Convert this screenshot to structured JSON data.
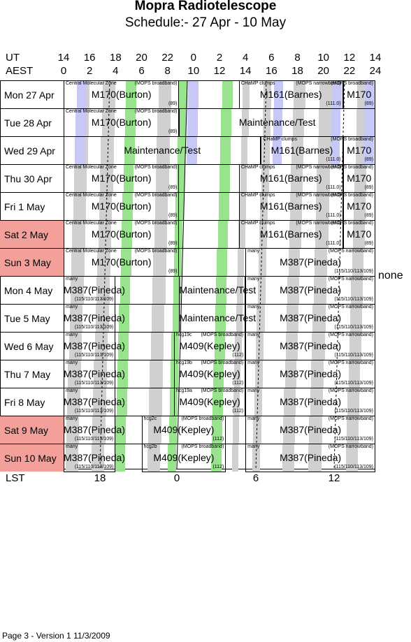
{
  "title": "Mopra Radiotelescope",
  "subtitle": "Schedule:- 27 Apr - 10 May",
  "axis": {
    "ut_label": "UT",
    "aest_label": "AEST",
    "ut_ticks": [
      "14",
      "16",
      "18",
      "20",
      "22",
      "0",
      "2",
      "4",
      "6",
      "8",
      "10",
      "12",
      "14"
    ],
    "aest_ticks": [
      "0",
      "2",
      "4",
      "6",
      "8",
      "10",
      "12",
      "14",
      "16",
      "18",
      "20",
      "22",
      "24"
    ],
    "lst_label": "LST",
    "lst_ticks": [
      "18",
      "0",
      "6",
      "12"
    ]
  },
  "colors": {
    "weekend": "#f4a09a",
    "grey": "#d0d0d0",
    "green": "#99e38e",
    "lavender": "#c8c8f8"
  },
  "days": [
    {
      "label": "Mon  27 Apr",
      "weekend": false
    },
    {
      "label": "Tue  28 Apr",
      "weekend": false
    },
    {
      "label": "Wed  29 Apr",
      "weekend": false
    },
    {
      "label": "Thu  30 Apr",
      "weekend": false
    },
    {
      "label": "Fri   1 May",
      "weekend": false
    },
    {
      "label": "Sat   2 May",
      "weekend": true
    },
    {
      "label": "Sun   3 May",
      "weekend": true
    },
    {
      "label": "Mon   4 May",
      "weekend": false
    },
    {
      "label": "Tue   5 May",
      "weekend": false
    },
    {
      "label": "Wed   6 May",
      "weekend": false
    },
    {
      "label": "Thu   7 May",
      "weekend": false
    },
    {
      "label": "Fri   8 May",
      "weekend": false
    },
    {
      "label": "Sat   9 May",
      "weekend": true
    },
    {
      "label": "Sun  10 May",
      "weekend": true
    }
  ],
  "schedule": [
    {
      "day": 0,
      "start": 0,
      "end": 8.9,
      "label": "M170(Burton)",
      "source": "Central Molecular Zone",
      "mode": "(MOPS broadband)",
      "code": "(89)"
    },
    {
      "day": 0,
      "start": 13.5,
      "end": 21.5,
      "label": "M161(Barnes)",
      "source": "CHaMP clumps",
      "mode": "(MOPS narrowband)",
      "code": "(111.0)"
    },
    {
      "day": 0,
      "start": 21.5,
      "end": 24,
      "label": "M170",
      "source": "",
      "mode": "(MOPS broadband)",
      "code": "(89)"
    },
    {
      "day": 1,
      "start": 0,
      "end": 8.9,
      "label": "M170(Burton)",
      "source": "Central Molecular Zone",
      "mode": "(MOPS broadband)",
      "code": "(89)"
    },
    {
      "day": 1,
      "start": 8.9,
      "end": 24,
      "label": "Maintenance/Test",
      "source": "",
      "mode": "",
      "code": ""
    },
    {
      "day": 2,
      "start": 0,
      "end": 15.2,
      "label": "Maintenance/Test",
      "source": "",
      "mode": "",
      "code": ""
    },
    {
      "day": 2,
      "start": 15.2,
      "end": 21.5,
      "label": "M161(Barnes)",
      "source": "CHaMP clumps",
      "mode": "",
      "code": "(111.0)"
    },
    {
      "day": 2,
      "start": 21.5,
      "end": 24,
      "label": "M170",
      "source": "",
      "mode": "(MOPS broadband)",
      "code": "(89)"
    },
    {
      "day": 3,
      "start": 0,
      "end": 8.9,
      "label": "M170(Burton)",
      "source": "Central Molecular Zone",
      "mode": "(MOPS broadband)",
      "code": "(89)"
    },
    {
      "day": 3,
      "start": 13.5,
      "end": 21.5,
      "label": "M161(Barnes)",
      "source": "CHaMP clumps",
      "mode": "(MOPS narrowband)",
      "code": "(111.0)"
    },
    {
      "day": 3,
      "start": 21.5,
      "end": 24,
      "label": "M170",
      "source": "",
      "mode": "(MOPS broadband)",
      "code": "(89)"
    },
    {
      "day": 4,
      "start": 0,
      "end": 8.9,
      "label": "M170(Burton)",
      "source": "Central Molecular Zone",
      "mode": "(MOPS broadband)",
      "code": "(89)"
    },
    {
      "day": 4,
      "start": 13.5,
      "end": 21.5,
      "label": "M161(Barnes)",
      "source": "CHaMP clumps",
      "mode": "(MOPS narrowband)",
      "code": "(111.0)"
    },
    {
      "day": 4,
      "start": 21.5,
      "end": 24,
      "label": "M170",
      "source": "",
      "mode": "(MOPS broadband)",
      "code": "(89)"
    },
    {
      "day": 5,
      "start": 0,
      "end": 8.9,
      "label": "M170(Burton)",
      "source": "Central Molecular Zone",
      "mode": "(MOPS broadband)",
      "code": "(89)"
    },
    {
      "day": 5,
      "start": 13.5,
      "end": 21.5,
      "label": "M161(Barnes)",
      "source": "CHaMP clumps",
      "mode": "(MOPS narrowband)",
      "code": "(111.0)"
    },
    {
      "day": 5,
      "start": 21.5,
      "end": 24,
      "label": "M170",
      "source": "",
      "mode": "(MOPS broadband)",
      "code": "(89)"
    },
    {
      "day": 6,
      "start": 0,
      "end": 8.9,
      "label": "M170(Burton)",
      "source": "Central Molecular Zone",
      "mode": "(MOPS broadband)",
      "code": "(89)"
    },
    {
      "day": 6,
      "start": 14,
      "end": 24,
      "label": "M387(Pineda)",
      "source": "many",
      "mode": "(MOPS narrowband)",
      "code": "(115/110/113/109)"
    },
    {
      "day": 7,
      "start": 0,
      "end": 4,
      "label": "M387(Pineda)",
      "source": "many",
      "mode": "",
      "code": "(115/110/113/109)"
    },
    {
      "day": 7,
      "start": 8.9,
      "end": 14,
      "label": "Maintenance/Test",
      "source": "",
      "mode": "",
      "code": ""
    },
    {
      "day": 7,
      "start": 14,
      "end": 24,
      "label": "M387(Pineda)",
      "source": "many",
      "mode": "(MOPS narrowband)",
      "code": "(115/110/113/109)"
    },
    {
      "day": 8,
      "start": 0,
      "end": 4,
      "label": "M387(Pineda)",
      "source": "many",
      "mode": "",
      "code": "(115/110/113/109)"
    },
    {
      "day": 8,
      "start": 8.9,
      "end": 14,
      "label": "Maintenance/Test",
      "source": "",
      "mode": "",
      "code": ""
    },
    {
      "day": 8,
      "start": 14,
      "end": 24,
      "label": "M387(Pineda)",
      "source": "many",
      "mode": "(MOPS narrowband)",
      "code": "(115/110/113/109)"
    },
    {
      "day": 9,
      "start": 0,
      "end": 4,
      "label": "M387(Pineda)",
      "source": "many",
      "mode": "",
      "code": "(115/110/113/109)"
    },
    {
      "day": 9,
      "start": 8.5,
      "end": 14,
      "label": "M409(Kepley)",
      "source": "hcg19c",
      "mode": "(MOPS broadband)",
      "code": "(112)"
    },
    {
      "day": 9,
      "start": 14,
      "end": 24,
      "label": "M387(Pineda)",
      "source": "many",
      "mode": "(MOPS narrowband)",
      "code": "(115/110/113/109)"
    },
    {
      "day": 10,
      "start": 0,
      "end": 4,
      "label": "M387(Pineda)",
      "source": "many",
      "mode": "",
      "code": "(115/110/113/109)"
    },
    {
      "day": 10,
      "start": 8.5,
      "end": 14,
      "label": "M409(Kepley)",
      "source": "hcg19b",
      "mode": "(MOPS broadband)",
      "code": "(112)"
    },
    {
      "day": 10,
      "start": 14,
      "end": 24,
      "label": "M387(Pineda)",
      "source": "many",
      "mode": "(MOPS narrowband)",
      "code": "(115/110/113/109)"
    },
    {
      "day": 11,
      "start": 0,
      "end": 4,
      "label": "M387(Pineda)",
      "source": "many",
      "mode": "",
      "code": "(115/110/113/109)"
    },
    {
      "day": 11,
      "start": 8.5,
      "end": 14,
      "label": "M409(Kepley)",
      "source": "hcg19a",
      "mode": "(MOPS broadband)",
      "code": "(112)"
    },
    {
      "day": 11,
      "start": 14,
      "end": 24,
      "label": "M387(Pineda)",
      "source": "many",
      "mode": "(MOPS narrowband)",
      "code": "(115/110/113/109)"
    },
    {
      "day": 12,
      "start": 0,
      "end": 4,
      "label": "M387(Pineda)",
      "source": "many",
      "mode": "",
      "code": "(115/110/113/109)"
    },
    {
      "day": 12,
      "start": 6,
      "end": 12.5,
      "label": "M409(Kepley)",
      "source": "hcg2c",
      "mode": "(MOPS broadband)",
      "code": "(112)"
    },
    {
      "day": 12,
      "start": 14,
      "end": 24,
      "label": "M387(Pineda)",
      "source": "many",
      "mode": "(MOPS narrowband)",
      "code": "(115/110/113/109)"
    },
    {
      "day": 13,
      "start": 0,
      "end": 4,
      "label": "M387(Pineda)",
      "source": "many",
      "mode": "",
      "code": "(115/110/113/109)"
    },
    {
      "day": 13,
      "start": 6,
      "end": 12.5,
      "label": "M409(Kepley)",
      "source": "hcg2b",
      "mode": "(MOPS broadband)",
      "code": "(112)"
    },
    {
      "day": 13,
      "start": 14,
      "end": 24,
      "label": "M387(Pineda)",
      "source": "many",
      "mode": "(MOPS narrowband)",
      "code": "(115/110/113/109)"
    }
  ],
  "none_label": "none",
  "footer": "Page 3 - Version 1  11/3/2009"
}
